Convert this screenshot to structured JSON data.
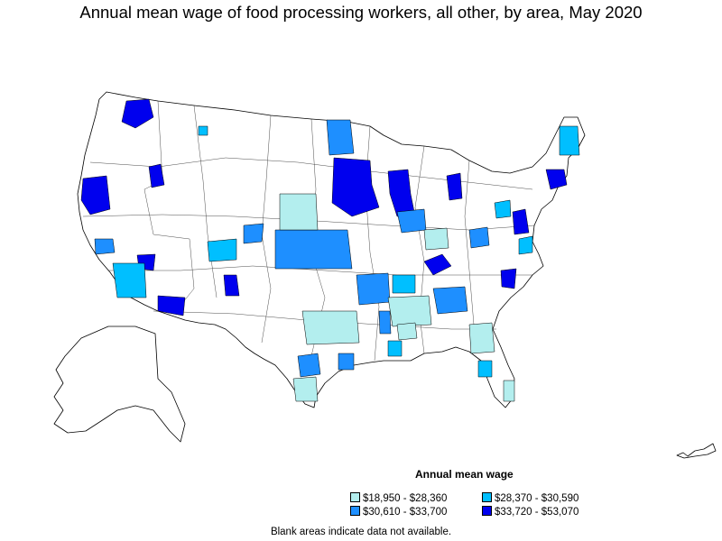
{
  "title": "Annual mean wage of food processing workers, all other, by area, May 2020",
  "legend": {
    "title": "Annual mean wage",
    "items": [
      {
        "label": "$18,950 - $28,360",
        "color": "#b3eeee"
      },
      {
        "label": "$28,370 - $30,590",
        "color": "#00bfff"
      },
      {
        "label": "$30,610 - $33,700",
        "color": "#1e8fff"
      },
      {
        "label": "$33,720 - $53,070",
        "color": "#0000ee"
      }
    ]
  },
  "footnote": "Blank areas indicate data not available.",
  "colors": {
    "outline": "#000000",
    "land": "#ffffff"
  }
}
